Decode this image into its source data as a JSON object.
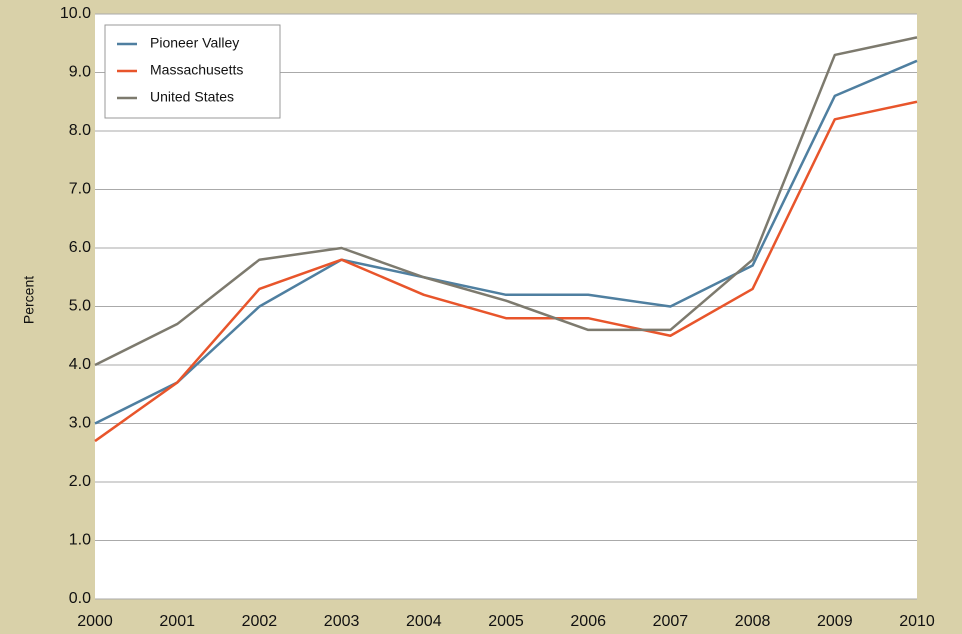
{
  "chart_data": {
    "type": "line",
    "y_label": "Percent",
    "x": [
      2000,
      2001,
      2002,
      2003,
      2004,
      2005,
      2006,
      2007,
      2008,
      2009,
      2010
    ],
    "xlim": [
      2000,
      2010
    ],
    "xticks": [
      2000,
      2001,
      2002,
      2003,
      2004,
      2005,
      2006,
      2007,
      2008,
      2009,
      2010
    ],
    "ylim": [
      0,
      10
    ],
    "yticks": [
      {
        "value": 0,
        "label": "0.0"
      },
      {
        "value": 1,
        "label": "1.0"
      },
      {
        "value": 2,
        "label": "2.0"
      },
      {
        "value": 3,
        "label": "3.0"
      },
      {
        "value": 4,
        "label": "4.0"
      },
      {
        "value": 5,
        "label": "5.0"
      },
      {
        "value": 6,
        "label": "6.0"
      },
      {
        "value": 7,
        "label": "7.0"
      },
      {
        "value": 8,
        "label": "8.0"
      },
      {
        "value": 9,
        "label": "9.0"
      },
      {
        "value": 10,
        "label": "10.0"
      }
    ],
    "grid": true,
    "legend": "top-left",
    "series": [
      {
        "name": "Pioneer Valley",
        "color": "#4f7fa0",
        "values": [
          3.0,
          3.7,
          5.0,
          5.8,
          5.5,
          5.2,
          5.2,
          5.0,
          5.7,
          8.6,
          9.2
        ]
      },
      {
        "name": "Massachusetts",
        "color": "#e8552b",
        "values": [
          2.7,
          3.7,
          5.3,
          5.8,
          5.2,
          4.8,
          4.8,
          4.5,
          5.3,
          8.2,
          8.5
        ]
      },
      {
        "name": "United States",
        "color": "#7d7a6e",
        "values": [
          4.0,
          4.7,
          5.8,
          6.0,
          5.5,
          5.1,
          4.6,
          4.6,
          5.8,
          9.3,
          9.6
        ]
      }
    ]
  }
}
